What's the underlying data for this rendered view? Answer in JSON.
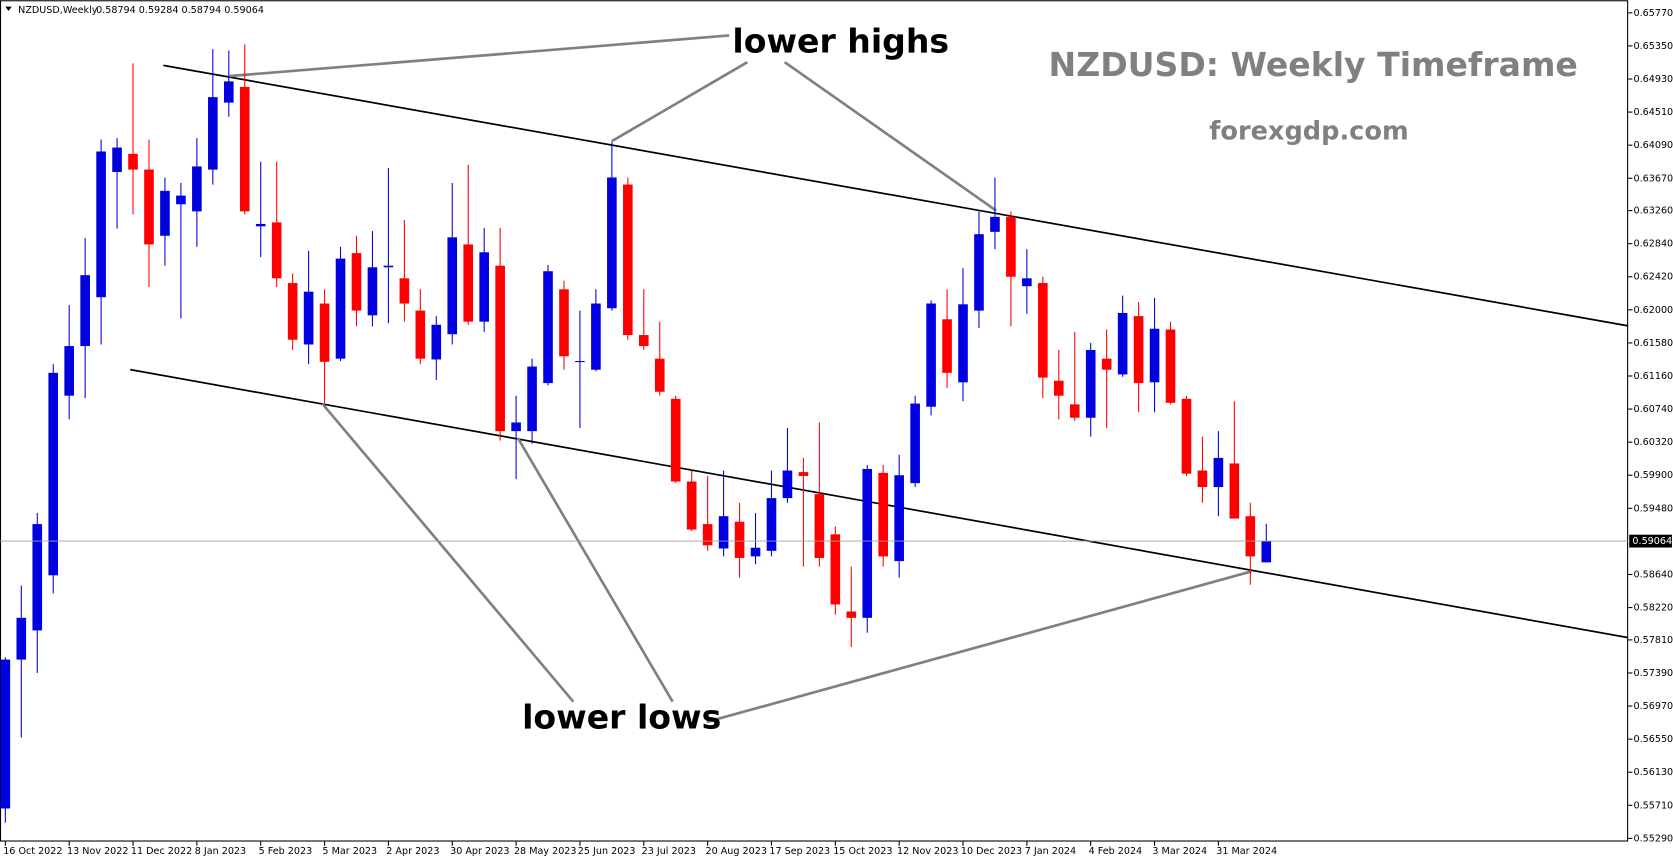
{
  "header": {
    "symbol": "NZDUSD,Weekly",
    "ohlc": "0.58794 0.59284 0.58794 0.59064"
  },
  "chart_data": {
    "type": "candlestick",
    "title": "NZDUSD: Weekly Timeframe",
    "subtitle": "forexgdp.com",
    "annotations": [
      "lower highs",
      "lower lows"
    ],
    "up_color": "#0000e0",
    "down_color": "#ff0000",
    "x": [
      "16 Oct 2022",
      null,
      null,
      null,
      "13 Nov 2022",
      null,
      null,
      null,
      "11 Dec 2022",
      null,
      null,
      null,
      "8 Jan 2023",
      null,
      null,
      null,
      "5 Feb 2023",
      null,
      null,
      null,
      "5 Mar 2023",
      null,
      null,
      null,
      "2 Apr 2023",
      null,
      null,
      null,
      "30 Apr 2023",
      null,
      null,
      null,
      "28 May 2023",
      null,
      null,
      null,
      "25 Jun 2023",
      null,
      null,
      null,
      "23 Jul 2023",
      null,
      null,
      null,
      "20 Aug 2023",
      null,
      null,
      null,
      "17 Sep 2023",
      null,
      null,
      null,
      "15 Oct 2023",
      null,
      null,
      null,
      "12 Nov 2023",
      null,
      null,
      null,
      "10 Dec 2023",
      null,
      null,
      null,
      "7 Jan 2024",
      null,
      null,
      null,
      "4 Feb 2024",
      null,
      null,
      null,
      "3 Mar 2024",
      null,
      null,
      null,
      "31 Mar 2024",
      null,
      null,
      null
    ],
    "open": [
      0.5567,
      0.5756,
      0.5793,
      0.5863,
      0.6091,
      0.6154,
      0.6216,
      0.6375,
      0.6398,
      0.6378,
      0.6294,
      0.6334,
      0.6325,
      0.6378,
      0.6463,
      0.6483,
      0.6306,
      0.6311,
      0.6234,
      0.6156,
      0.6208,
      0.6138,
      0.6272,
      0.6193,
      0.6254,
      0.624,
      0.6199,
      0.6137,
      0.6169,
      0.6283,
      0.6185,
      0.6256,
      0.6046,
      0.6046,
      0.6107,
      0.6226,
      0.6134,
      0.6124,
      0.6202,
      0.6359,
      0.6168,
      0.6138,
      0.6087,
      0.5982,
      0.5928,
      0.5897,
      0.5931,
      0.5887,
      0.5894,
      0.5961,
      0.5994,
      0.5966,
      0.5915,
      0.5817,
      0.5809,
      0.5993,
      0.5881,
      0.598,
      0.6077,
      0.6188,
      0.6108,
      0.6199,
      0.6299,
      0.6318,
      0.623,
      0.6234,
      0.611,
      0.608,
      0.6063,
      0.6138,
      0.6118,
      0.6192,
      0.6108,
      0.6175,
      0.6087,
      0.5996,
      0.5975,
      0.6005,
      0.5938,
      0.58794
    ],
    "high": [
      0.5759,
      0.585,
      0.5942,
      0.6131,
      0.6206,
      0.6291,
      0.6416,
      0.6418,
      0.6513,
      0.6416,
      0.6368,
      0.6361,
      0.6418,
      0.6531,
      0.6529,
      0.6537,
      0.6388,
      0.6388,
      0.6246,
      0.6275,
      0.6226,
      0.628,
      0.6294,
      0.63,
      0.638,
      0.6314,
      0.6226,
      0.6192,
      0.6361,
      0.6384,
      0.6304,
      0.6304,
      0.6091,
      0.6138,
      0.6257,
      0.6237,
      0.6199,
      0.6226,
      0.6413,
      0.6368,
      0.6226,
      0.6185,
      0.6091,
      0.5996,
      0.5989,
      0.5996,
      0.5955,
      0.5942,
      0.5996,
      0.605,
      0.6012,
      0.6057,
      0.5925,
      0.5874,
      0.6003,
      0.6003,
      0.6016,
      0.6091,
      0.6212,
      0.6226,
      0.6253,
      0.6325,
      0.6368,
      0.6325,
      0.6277,
      0.6242,
      0.6149,
      0.6172,
      0.6158,
      0.6175,
      0.6218,
      0.621,
      0.6215,
      0.6185,
      0.6091,
      0.6039,
      0.6046,
      0.6084,
      0.5955,
      0.59284
    ],
    "low": [
      0.5549,
      0.5657,
      0.5739,
      0.584,
      0.6061,
      0.6088,
      0.6156,
      0.6303,
      0.6321,
      0.6229,
      0.6256,
      0.6189,
      0.628,
      0.6359,
      0.6445,
      0.6321,
      0.6267,
      0.6229,
      0.6149,
      0.6131,
      0.608,
      0.6135,
      0.6179,
      0.6179,
      0.6183,
      0.6185,
      0.6131,
      0.6111,
      0.6156,
      0.6181,
      0.6172,
      0.6034,
      0.5985,
      0.603,
      0.6104,
      0.6124,
      0.605,
      0.6122,
      0.6199,
      0.6162,
      0.6149,
      0.6091,
      0.598,
      0.5919,
      0.5894,
      0.5887,
      0.586,
      0.5877,
      0.5887,
      0.5955,
      0.5874,
      0.5874,
      0.5813,
      0.5772,
      0.579,
      0.5874,
      0.586,
      0.5975,
      0.6066,
      0.6101,
      0.6084,
      0.6177,
      0.6277,
      0.6179,
      0.6195,
      0.6088,
      0.6061,
      0.6059,
      0.6039,
      0.605,
      0.6115,
      0.607,
      0.607,
      0.608,
      0.5989,
      0.5955,
      0.5938,
      0.5935,
      0.5851,
      0.58794
    ],
    "close": [
      0.5756,
      0.5809,
      0.5928,
      0.612,
      0.6154,
      0.6244,
      0.6401,
      0.6406,
      0.6378,
      0.6283,
      0.6351,
      0.6345,
      0.6382,
      0.647,
      0.649,
      0.6325,
      0.6309,
      0.624,
      0.6162,
      0.6223,
      0.6134,
      0.6265,
      0.6199,
      0.6254,
      0.6256,
      0.6208,
      0.6138,
      0.6181,
      0.6292,
      0.6185,
      0.6273,
      0.6046,
      0.6057,
      0.6128,
      0.6249,
      0.6141,
      0.6135,
      0.6208,
      0.6368,
      0.6168,
      0.6154,
      0.6096,
      0.5982,
      0.5921,
      0.5901,
      0.5938,
      0.5885,
      0.5898,
      0.5961,
      0.5996,
      0.5989,
      0.5885,
      0.5826,
      0.5809,
      0.5998,
      0.5887,
      0.599,
      0.6081,
      0.6208,
      0.612,
      0.6207,
      0.6296,
      0.6318,
      0.6242,
      0.624,
      0.6114,
      0.6091,
      0.6063,
      0.6149,
      0.6124,
      0.6196,
      0.6107,
      0.6176,
      0.6082,
      0.5992,
      0.5975,
      0.6012,
      0.5935,
      0.5887,
      0.59064
    ],
    "last_price": 0.59064,
    "ylim": [
      0.5525,
      0.6593
    ],
    "yticks": [
      {
        "value": 0.6577,
        "label": "0.65770"
      },
      {
        "value": 0.6535,
        "label": "0.65350"
      },
      {
        "value": 0.6493,
        "label": "0.64930"
      },
      {
        "value": 0.6451,
        "label": "0.64510"
      },
      {
        "value": 0.6409,
        "label": "0.64090"
      },
      {
        "value": 0.6367,
        "label": "0.63670"
      },
      {
        "value": 0.6326,
        "label": "0.63260"
      },
      {
        "value": 0.6284,
        "label": "0.62840"
      },
      {
        "value": 0.6242,
        "label": "0.62420"
      },
      {
        "value": 0.62,
        "label": "0.62000"
      },
      {
        "value": 0.6158,
        "label": "0.61580"
      },
      {
        "value": 0.6116,
        "label": "0.61160"
      },
      {
        "value": 0.6074,
        "label": "0.60740"
      },
      {
        "value": 0.6032,
        "label": "0.60320"
      },
      {
        "value": 0.599,
        "label": "0.59900"
      },
      {
        "value": 0.5948,
        "label": "0.59480"
      },
      {
        "value": 0.5864,
        "label": "0.58640"
      },
      {
        "value": 0.5822,
        "label": "0.58220"
      },
      {
        "value": 0.5781,
        "label": "0.57810"
      },
      {
        "value": 0.5739,
        "label": "0.57390"
      },
      {
        "value": 0.5697,
        "label": "0.56970"
      },
      {
        "value": 0.5655,
        "label": "0.56550"
      },
      {
        "value": 0.5613,
        "label": "0.56130"
      },
      {
        "value": 0.5571,
        "label": "0.55710"
      },
      {
        "value": 0.5529,
        "label": "0.55290"
      }
    ],
    "grid": false
  }
}
